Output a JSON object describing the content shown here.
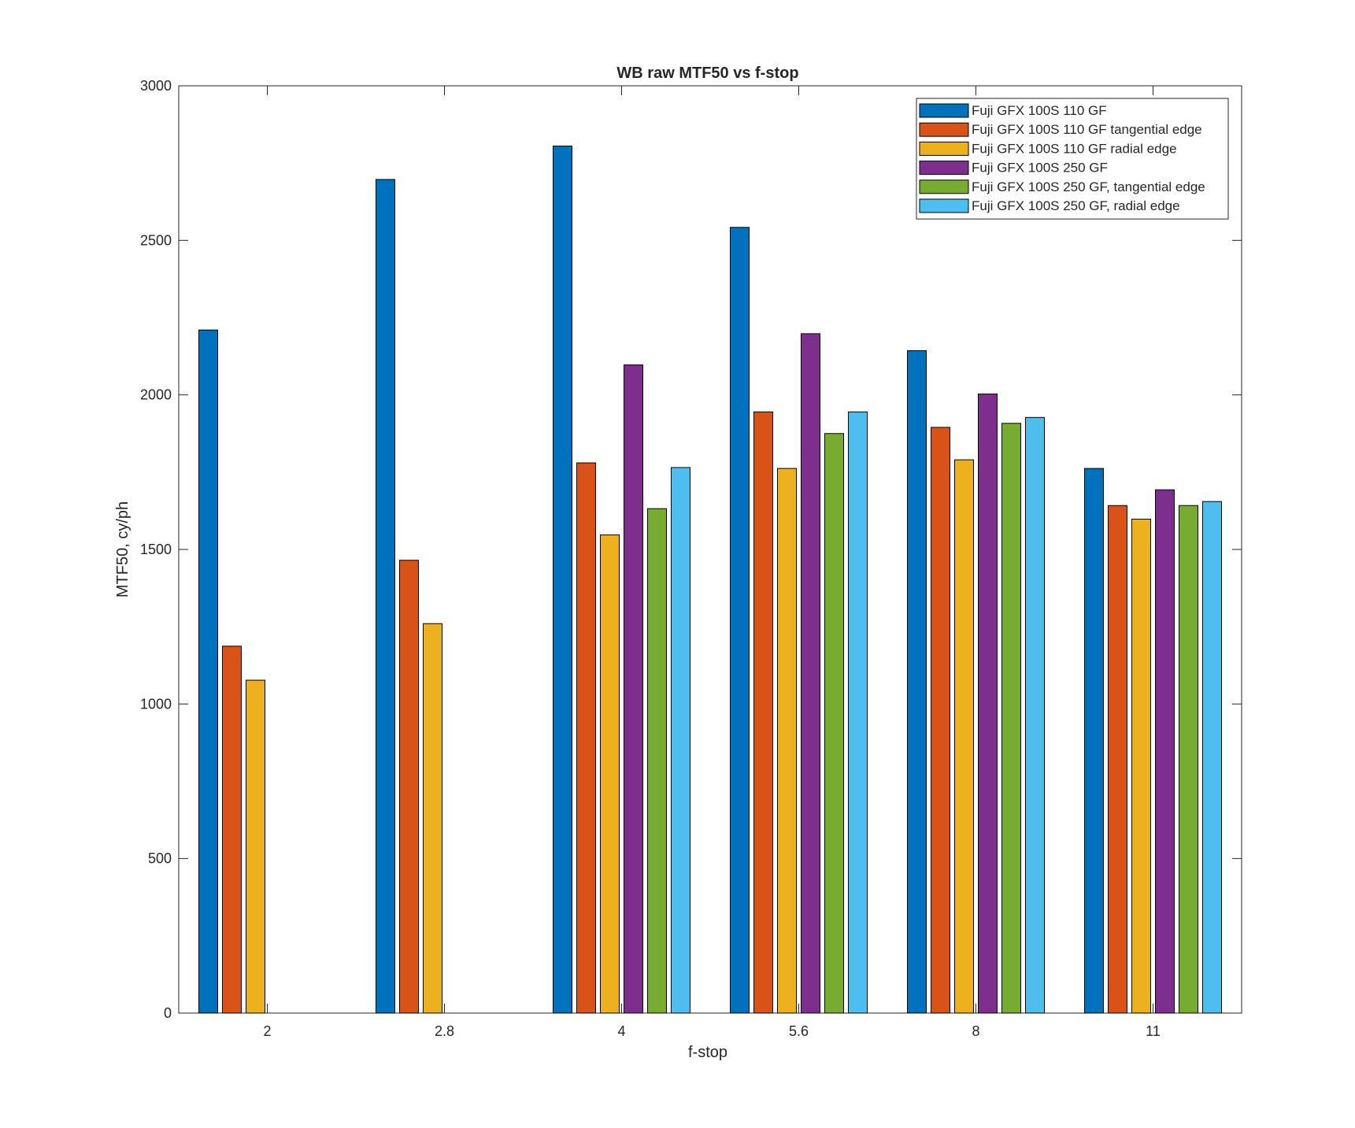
{
  "chart_data": {
    "type": "bar",
    "title": "WB raw MTF50 vs f-stop",
    "xlabel": "f-stop",
    "ylabel": "MTF50, cy/ph",
    "categories": [
      "2",
      "2.8",
      "4",
      "5.6",
      "8",
      "11"
    ],
    "ylim": [
      0,
      3000
    ],
    "yticks": [
      0,
      500,
      1000,
      1500,
      2000,
      2500,
      3000
    ],
    "grid": false,
    "legend_position": "top-right",
    "series": [
      {
        "name": "Fuji GFX 100S 110 GF",
        "color": "#0072BD",
        "values": [
          2210,
          2697,
          2805,
          2542,
          2143,
          1762
        ]
      },
      {
        "name": "Fuji GFX 100S 110 GF tangential edge",
        "color": "#D95319",
        "values": [
          1187,
          1465,
          1780,
          1945,
          1895,
          1642
        ]
      },
      {
        "name": "Fuji GFX 100S 110 GF radial edge",
        "color": "#EDB120",
        "values": [
          1077,
          1260,
          1547,
          1762,
          1790,
          1598
        ]
      },
      {
        "name": "Fuji GFX 100S 250 GF",
        "color": "#7E2F8E",
        "values": [
          0,
          0,
          2097,
          2198,
          2003,
          1693
        ]
      },
      {
        "name": "Fuji GFX 100S 250 GF, tangential edge",
        "color": "#77AC30",
        "values": [
          0,
          0,
          1632,
          1875,
          1908,
          1642
        ]
      },
      {
        "name": "Fuji GFX 100S 250 GF, radial edge",
        "color": "#4DBEEE",
        "values": [
          0,
          0,
          1765,
          1945,
          1927,
          1655
        ]
      }
    ]
  }
}
